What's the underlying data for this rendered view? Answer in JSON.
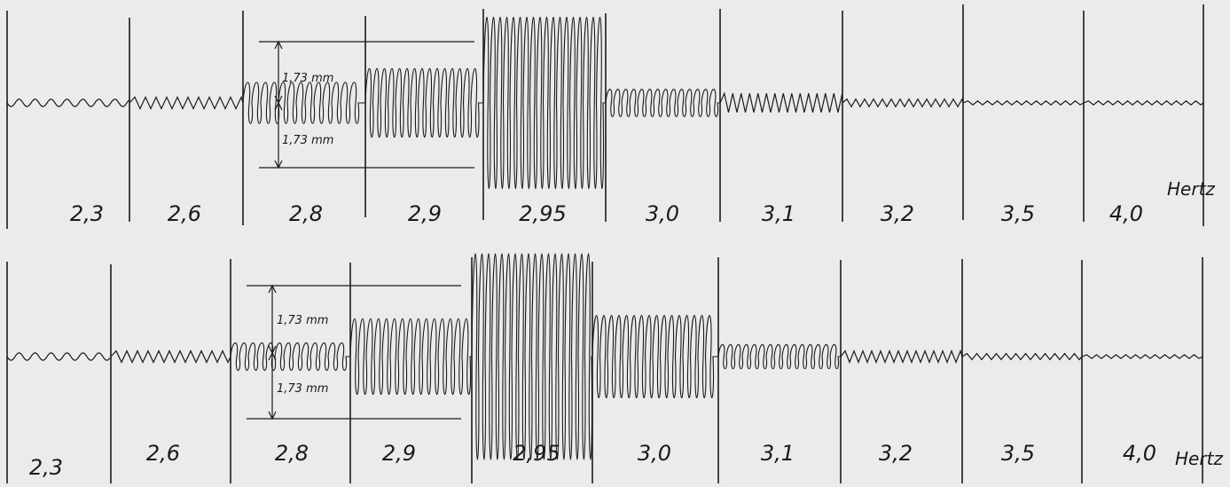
{
  "figure": {
    "dimension_label": "1,73 mm",
    "unit_label": "Hertz",
    "ink_color": "#1a1a1a",
    "paper_color": "#ebebea",
    "panels": [
      {
        "id": "top",
        "segments": [
          {
            "label": "2,3",
            "amplitude_mm": 0.1,
            "wave": "smooth"
          },
          {
            "label": "2,6",
            "amplitude_mm": 0.15,
            "wave": "zigzag"
          },
          {
            "label": "2,8",
            "amplitude_mm": 0.6,
            "wave": "coil"
          },
          {
            "label": "2,9",
            "amplitude_mm": 1.0,
            "wave": "coil"
          },
          {
            "label": "2,95",
            "amplitude_mm": 2.5,
            "wave": "coil"
          },
          {
            "label": "3,0",
            "amplitude_mm": 0.4,
            "wave": "coil"
          },
          {
            "label": "3,1",
            "amplitude_mm": 0.25,
            "wave": "zigzag"
          },
          {
            "label": "3,2",
            "amplitude_mm": 0.1,
            "wave": "zigzag"
          },
          {
            "label": "3,5",
            "amplitude_mm": 0.05,
            "wave": "zigzag"
          },
          {
            "label": "4,0",
            "amplitude_mm": 0.05,
            "wave": "zigzag"
          }
        ]
      },
      {
        "id": "bottom",
        "segments": [
          {
            "label": "2,3",
            "amplitude_mm": 0.1,
            "wave": "smooth"
          },
          {
            "label": "2,6",
            "amplitude_mm": 0.15,
            "wave": "zigzag"
          },
          {
            "label": "2,8",
            "amplitude_mm": 0.4,
            "wave": "coil"
          },
          {
            "label": "2,9",
            "amplitude_mm": 1.1,
            "wave": "coil"
          },
          {
            "label": "2,95",
            "amplitude_mm": 3.0,
            "wave": "coil"
          },
          {
            "label": "3,0",
            "amplitude_mm": 1.2,
            "wave": "coil"
          },
          {
            "label": "3,1",
            "amplitude_mm": 0.35,
            "wave": "coil"
          },
          {
            "label": "3,2",
            "amplitude_mm": 0.15,
            "wave": "zigzag"
          },
          {
            "label": "3,5",
            "amplitude_mm": 0.08,
            "wave": "zigzag"
          },
          {
            "label": "4,0",
            "amplitude_mm": 0.05,
            "wave": "zigzag"
          }
        ]
      }
    ]
  }
}
